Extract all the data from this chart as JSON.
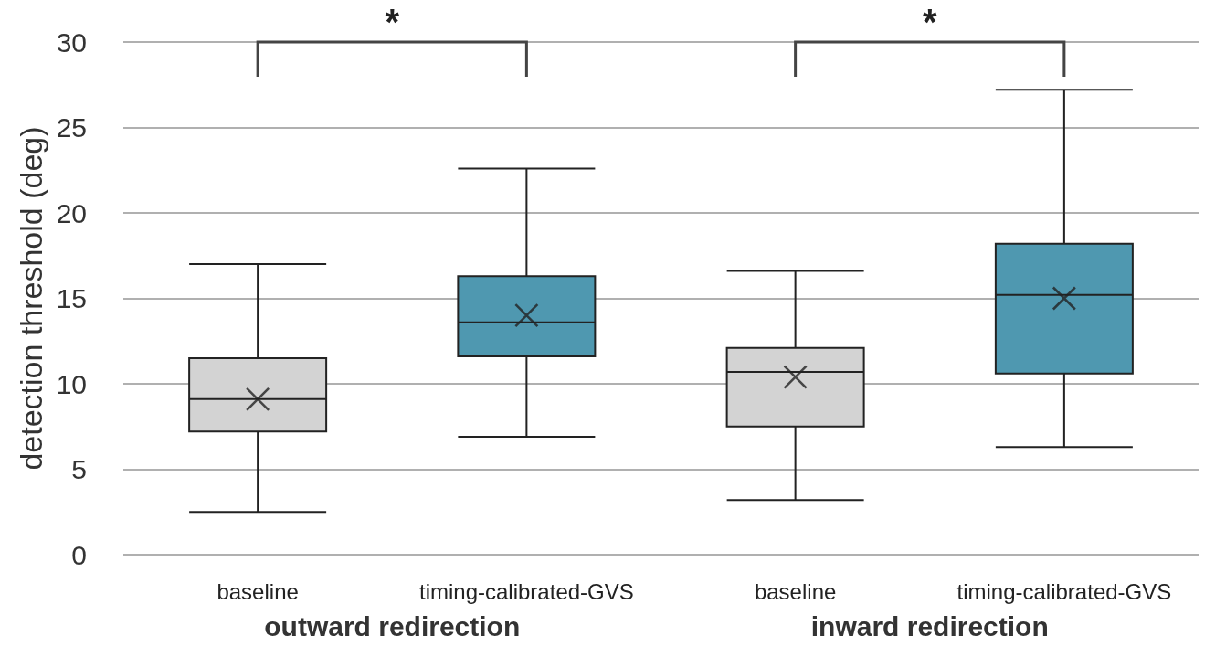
{
  "chart_data": {
    "type": "box",
    "ylabel": "detection threshold (deg)",
    "categories": [
      "baseline",
      "timing-calibrated-GVS",
      "baseline",
      "timing-calibrated-GVS"
    ],
    "colors": [
      "#d3d3d3",
      "#4f98b0",
      "#d3d3d3",
      "#4f98b0"
    ],
    "boxes": [
      {
        "low": 2.5,
        "q1": 7.2,
        "median": 9.1,
        "q3": 11.5,
        "high": 17.0,
        "mean": 9.1
      },
      {
        "low": 6.9,
        "q1": 11.6,
        "median": 13.6,
        "q3": 16.3,
        "high": 22.6,
        "mean": 14.0
      },
      {
        "low": 3.2,
        "q1": 7.5,
        "median": 10.7,
        "q3": 12.1,
        "high": 16.6,
        "mean": 10.4
      },
      {
        "low": 6.3,
        "q1": 10.6,
        "median": 15.2,
        "q3": 18.2,
        "high": 27.2,
        "mean": 15.0
      }
    ],
    "ylim": [
      0,
      30
    ],
    "yticks": [
      0,
      5,
      10,
      15,
      20,
      25,
      30
    ],
    "grid": "y",
    "marker": "cross",
    "annotations": [
      "*",
      "*",
      "outward redirection",
      "inward redirection"
    ]
  }
}
